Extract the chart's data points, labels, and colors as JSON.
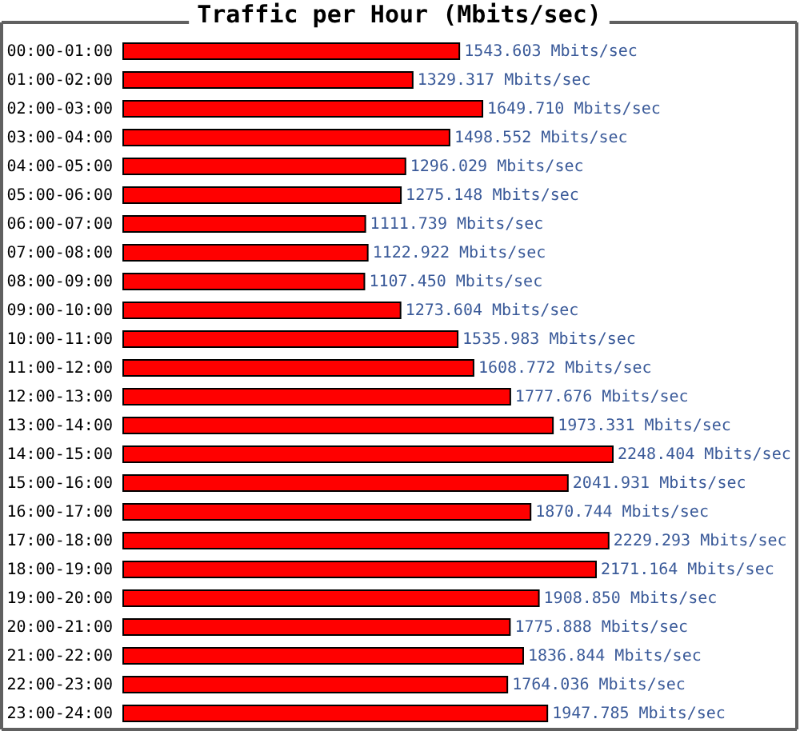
{
  "chart_data": {
    "type": "bar",
    "orientation": "horizontal",
    "title": "Traffic per Hour (Mbits/sec)",
    "color": "#ff0000",
    "categories": [
      "00:00-01:00",
      "01:00-02:00",
      "02:00-03:00",
      "03:00-04:00",
      "04:00-05:00",
      "05:00-06:00",
      "06:00-07:00",
      "07:00-08:00",
      "08:00-09:00",
      "09:00-10:00",
      "10:00-11:00",
      "11:00-12:00",
      "12:00-13:00",
      "13:00-14:00",
      "14:00-15:00",
      "15:00-16:00",
      "16:00-17:00",
      "17:00-18:00",
      "18:00-19:00",
      "19:00-20:00",
      "20:00-21:00",
      "21:00-22:00",
      "22:00-23:00",
      "23:00-24:00"
    ],
    "values": [
      1543.603,
      1329.317,
      1649.71,
      1498.552,
      1296.029,
      1275.148,
      1111.739,
      1122.922,
      1107.45,
      1273.604,
      1535.983,
      1608.772,
      1777.676,
      1973.331,
      2248.404,
      2041.931,
      1870.744,
      2229.293,
      2171.164,
      1908.85,
      1775.888,
      1836.844,
      1764.036,
      1947.785
    ],
    "value_labels": [
      "1543.603 Mbits/sec",
      "1329.317 Mbits/sec",
      "1649.710 Mbits/sec",
      "1498.552 Mbits/sec",
      "1296.029 Mbits/sec",
      "1275.148 Mbits/sec",
      "1111.739 Mbits/sec",
      "1122.922 Mbits/sec",
      "1107.450 Mbits/sec",
      "1273.604 Mbits/sec",
      "1535.983 Mbits/sec",
      "1608.772 Mbits/sec",
      "1777.676 Mbits/sec",
      "1973.331 Mbits/sec",
      "2248.404 Mbits/sec",
      "2041.931 Mbits/sec",
      "1870.744 Mbits/sec",
      "2229.293 Mbits/sec",
      "2171.164 Mbits/sec",
      "1908.850 Mbits/sec",
      "1775.888 Mbits/sec",
      "1836.844 Mbits/sec",
      "1764.036 Mbits/sec",
      "1947.785 Mbits/sec"
    ]
  }
}
